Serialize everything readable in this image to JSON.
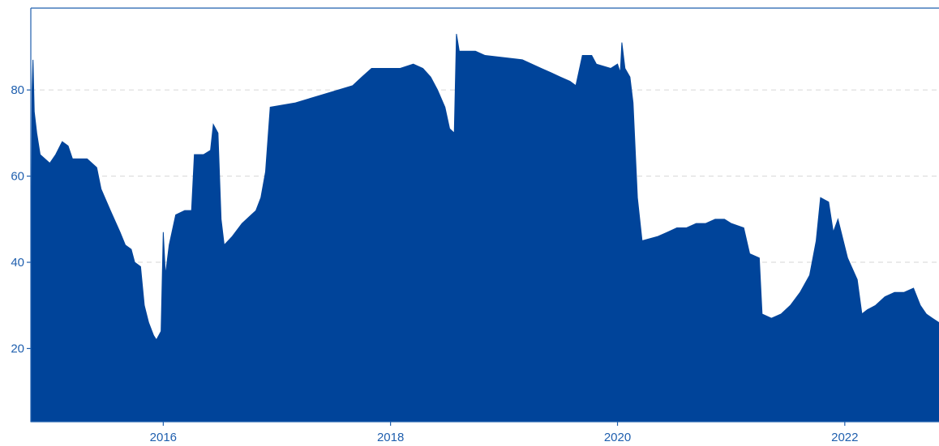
{
  "chart_data": {
    "type": "area",
    "title": "",
    "xlabel": "",
    "ylabel": "",
    "xlim": [
      "2014-11-01",
      "2022-10-31"
    ],
    "ylim": [
      3,
      99
    ],
    "grid": "horizontal dashed",
    "legend": "none",
    "colors": {
      "fill": "#00449a",
      "axis": "#1f5fae",
      "grid": "#d6d6d6"
    },
    "x_ticks": [
      {
        "value": "2016-01-01",
        "label": "2016"
      },
      {
        "value": "2018-01-01",
        "label": "2018"
      },
      {
        "value": "2020-01-01",
        "label": "2020"
      },
      {
        "value": "2022-01-01",
        "label": "2022"
      }
    ],
    "y_ticks": [
      {
        "value": 20,
        "label": "20"
      },
      {
        "value": 40,
        "label": "40"
      },
      {
        "value": 60,
        "label": "60"
      },
      {
        "value": 80,
        "label": "80"
      }
    ],
    "series": [
      {
        "points": [
          [
            "2014-11-01",
            14
          ],
          [
            "2014-11-05",
            80
          ],
          [
            "2014-11-08",
            87
          ],
          [
            "2014-11-12",
            75
          ],
          [
            "2014-11-20",
            70
          ],
          [
            "2014-12-01",
            65
          ],
          [
            "2015-01-01",
            63
          ],
          [
            "2015-01-20",
            65
          ],
          [
            "2015-02-10",
            68
          ],
          [
            "2015-03-01",
            67
          ],
          [
            "2015-03-15",
            64
          ],
          [
            "2015-04-01",
            64
          ],
          [
            "2015-05-01",
            64
          ],
          [
            "2015-06-01",
            62
          ],
          [
            "2015-06-15",
            57
          ],
          [
            "2015-07-15",
            52
          ],
          [
            "2015-08-15",
            47
          ],
          [
            "2015-09-01",
            44
          ],
          [
            "2015-09-20",
            43
          ],
          [
            "2015-10-01",
            40
          ],
          [
            "2015-10-20",
            39
          ],
          [
            "2015-11-01",
            30
          ],
          [
            "2015-11-15",
            26
          ],
          [
            "2015-12-01",
            23
          ],
          [
            "2015-12-10",
            22
          ],
          [
            "2015-12-25",
            24
          ],
          [
            "2016-01-01",
            47
          ],
          [
            "2016-01-08",
            37
          ],
          [
            "2016-01-20",
            44
          ],
          [
            "2016-02-10",
            51
          ],
          [
            "2016-03-10",
            52
          ],
          [
            "2016-04-01",
            52
          ],
          [
            "2016-04-10",
            65
          ],
          [
            "2016-05-10",
            65
          ],
          [
            "2016-06-01",
            66
          ],
          [
            "2016-06-10",
            72
          ],
          [
            "2016-06-25",
            70
          ],
          [
            "2016-07-05",
            50
          ],
          [
            "2016-07-15",
            44
          ],
          [
            "2016-08-10",
            46
          ],
          [
            "2016-09-10",
            49
          ],
          [
            "2016-10-10",
            51
          ],
          [
            "2016-10-25",
            52
          ],
          [
            "2016-11-10",
            55
          ],
          [
            "2016-11-25",
            61
          ],
          [
            "2016-12-10",
            76
          ],
          [
            "2017-03-01",
            77
          ],
          [
            "2017-06-01",
            79
          ],
          [
            "2017-09-01",
            81
          ],
          [
            "2017-10-01",
            83
          ],
          [
            "2017-11-01",
            85
          ],
          [
            "2017-12-15",
            85
          ],
          [
            "2018-02-01",
            85
          ],
          [
            "2018-03-15",
            86
          ],
          [
            "2018-04-15",
            85
          ],
          [
            "2018-05-10",
            83
          ],
          [
            "2018-06-01",
            80
          ],
          [
            "2018-06-25",
            76
          ],
          [
            "2018-07-10",
            71
          ],
          [
            "2018-07-25",
            70
          ],
          [
            "2018-08-01",
            93
          ],
          [
            "2018-08-10",
            89
          ],
          [
            "2018-10-01",
            89
          ],
          [
            "2018-11-01",
            88
          ],
          [
            "2019-03-01",
            87
          ],
          [
            "2019-05-01",
            85
          ],
          [
            "2019-06-01",
            84
          ],
          [
            "2019-07-01",
            83
          ],
          [
            "2019-08-01",
            82
          ],
          [
            "2019-08-20",
            81
          ],
          [
            "2019-09-10",
            88
          ],
          [
            "2019-10-10",
            88
          ],
          [
            "2019-10-25",
            86
          ],
          [
            "2019-12-10",
            85
          ],
          [
            "2020-01-01",
            86
          ],
          [
            "2020-01-10",
            84
          ],
          [
            "2020-01-15",
            91
          ],
          [
            "2020-01-25",
            85
          ],
          [
            "2020-02-10",
            83
          ],
          [
            "2020-02-20",
            77
          ],
          [
            "2020-03-05",
            55
          ],
          [
            "2020-03-20",
            45
          ],
          [
            "2020-05-10",
            46
          ],
          [
            "2020-06-10",
            47
          ],
          [
            "2020-07-10",
            48
          ],
          [
            "2020-08-10",
            48
          ],
          [
            "2020-09-10",
            49
          ],
          [
            "2020-10-10",
            49
          ],
          [
            "2020-11-10",
            50
          ],
          [
            "2020-12-10",
            50
          ],
          [
            "2021-01-01",
            49
          ],
          [
            "2021-02-10",
            48
          ],
          [
            "2021-03-01",
            42
          ],
          [
            "2021-04-01",
            41
          ],
          [
            "2021-04-10",
            28
          ],
          [
            "2021-05-10",
            27
          ],
          [
            "2021-06-10",
            28
          ],
          [
            "2021-07-10",
            30
          ],
          [
            "2021-08-10",
            33
          ],
          [
            "2021-09-10",
            37
          ],
          [
            "2021-10-01",
            45
          ],
          [
            "2021-10-15",
            55
          ],
          [
            "2021-11-10",
            54
          ],
          [
            "2021-11-25",
            47
          ],
          [
            "2021-12-10",
            50
          ],
          [
            "2022-01-10",
            41
          ],
          [
            "2022-02-10",
            36
          ],
          [
            "2022-02-25",
            28
          ],
          [
            "2022-03-15",
            29
          ],
          [
            "2022-04-10",
            30
          ],
          [
            "2022-05-10",
            32
          ],
          [
            "2022-06-10",
            33
          ],
          [
            "2022-07-10",
            33
          ],
          [
            "2022-08-10",
            34
          ],
          [
            "2022-09-01",
            30
          ],
          [
            "2022-09-20",
            28
          ],
          [
            "2022-10-10",
            27
          ],
          [
            "2022-10-31",
            26
          ]
        ]
      }
    ]
  }
}
